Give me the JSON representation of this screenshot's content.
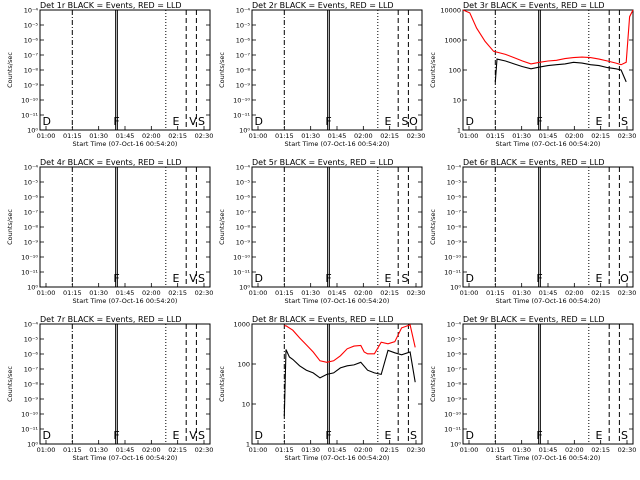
{
  "colors": {
    "events": "#000000",
    "lld": "#ff0000",
    "axes": "#000000"
  },
  "panels": [
    {
      "title": "Det 1r BLACK = Events, RED = LLD",
      "ylabel": "Counts/sec",
      "xlabel": "Start Time (07-Oct-16 00:54:20)",
      "scale": "small",
      "xtick_labels": [
        "01:00",
        "01:15",
        "01:30",
        "01:45",
        "02:00",
        "02:15",
        "02:30"
      ],
      "ytick_labels": [
        "10⁰",
        "10⁻¹¹",
        "10⁻¹⁰",
        "10⁻⁹",
        "10⁻⁸",
        "10⁻⁷",
        "10⁻⁶",
        "10⁻⁵",
        "10⁻⁴"
      ],
      "markers": [
        {
          "text": "D",
          "x": 0.04
        },
        {
          "text": "F",
          "x": 0.45
        },
        {
          "text": "E",
          "x": 0.8
        },
        {
          "text": "V",
          "x": 0.9
        },
        {
          "text": "S",
          "x": 0.95
        }
      ],
      "series": []
    },
    {
      "title": "Det 2r BLACK = Events, RED = LLD",
      "ylabel": "Counts/sec",
      "xlabel": "Start Time (07-Oct-16 00:54:20)",
      "scale": "small",
      "xtick_labels": [
        "01:00",
        "01:15",
        "01:30",
        "01:45",
        "02:00",
        "02:15",
        "02:30"
      ],
      "ytick_labels": [
        "10⁰",
        "10⁻¹¹",
        "10⁻¹⁰",
        "10⁻⁹",
        "10⁻⁸",
        "10⁻⁷",
        "10⁻⁶",
        "10⁻⁵",
        "10⁻⁴"
      ],
      "markers": [
        {
          "text": "D",
          "x": 0.04
        },
        {
          "text": "F",
          "x": 0.45
        },
        {
          "text": "E",
          "x": 0.8
        },
        {
          "text": "S",
          "x": 0.9
        },
        {
          "text": "O",
          "x": 0.95
        }
      ],
      "series": []
    },
    {
      "title": "Det 3r BLACK = Events, RED = LLD",
      "ylabel": "Counts/sec",
      "xlabel": "Start Time (07-Oct-16 00:54:20)",
      "scale": "large",
      "xtick_labels": [
        "01:00",
        "01:15",
        "01:30",
        "01:45",
        "02:00",
        "02:15",
        "02:30"
      ],
      "ytick_labels": [
        "1",
        "10",
        "100",
        "1000",
        "10000"
      ],
      "markers": [
        {
          "text": "D",
          "x": 0.04
        },
        {
          "text": "F",
          "x": 0.45
        },
        {
          "text": "E",
          "x": 0.8
        },
        {
          "text": "S",
          "x": 0.95
        }
      ],
      "series": [
        {
          "color": "#ff0000",
          "x": [
            0,
            0.04,
            0.08,
            0.13,
            0.18,
            0.25,
            0.3,
            0.35,
            0.4,
            0.45,
            0.5,
            0.55,
            0.6,
            0.65,
            0.7,
            0.75,
            0.8,
            0.85,
            0.9,
            0.93,
            0.96,
            0.98,
            1.0
          ],
          "y": [
            15000,
            8000,
            2500,
            900,
            420,
            330,
            260,
            200,
            160,
            180,
            200,
            210,
            240,
            260,
            270,
            260,
            230,
            200,
            170,
            150,
            180,
            6000,
            12000
          ]
        },
        {
          "color": "#000000",
          "x": [
            0.19,
            0.2,
            0.25,
            0.3,
            0.35,
            0.4,
            0.45,
            0.5,
            0.55,
            0.6,
            0.65,
            0.7,
            0.75,
            0.8,
            0.85,
            0.9,
            0.93,
            0.96
          ],
          "y": [
            40,
            230,
            200,
            160,
            130,
            110,
            125,
            140,
            150,
            160,
            180,
            170,
            150,
            140,
            120,
            110,
            100,
            40
          ]
        }
      ]
    },
    {
      "title": "Det 4r BLACK = Events, RED = LLD",
      "ylabel": "Counts/sec",
      "xlabel": "Start Time (07-Oct-16 00:54:20)",
      "scale": "small",
      "xtick_labels": [
        "01:00",
        "01:15",
        "01:30",
        "01:45",
        "02:00",
        "02:15",
        "02:30"
      ],
      "ytick_labels": [
        "10⁰",
        "10⁻¹¹",
        "10⁻¹⁰",
        "10⁻⁹",
        "10⁻⁸",
        "10⁻⁷",
        "10⁻⁶",
        "10⁻⁵",
        "10⁻⁴"
      ],
      "markers": [
        {
          "text": "F",
          "x": 0.45
        },
        {
          "text": "E",
          "x": 0.8
        },
        {
          "text": "V",
          "x": 0.9
        },
        {
          "text": "S",
          "x": 0.95
        }
      ],
      "series": []
    },
    {
      "title": "Det 5r BLACK = Events, RED = LLD",
      "ylabel": "Counts/sec",
      "xlabel": "Start Time (07-Oct-16 00:54:20)",
      "scale": "small",
      "xtick_labels": [
        "01:00",
        "01:15",
        "01:30",
        "01:45",
        "02:00",
        "02:15",
        "02:30"
      ],
      "ytick_labels": [
        "10⁰",
        "10⁻¹¹",
        "10⁻¹⁰",
        "10⁻⁹",
        "10⁻⁸",
        "10⁻⁷",
        "10⁻⁶",
        "10⁻⁵",
        "10⁻⁴"
      ],
      "markers": [
        {
          "text": "D",
          "x": 0.04
        },
        {
          "text": "F",
          "x": 0.45
        },
        {
          "text": "E",
          "x": 0.8
        },
        {
          "text": "S",
          "x": 0.9
        }
      ],
      "series": []
    },
    {
      "title": "Det 6r BLACK = Events, RED = LLD",
      "ylabel": "Counts/sec",
      "xlabel": "Start Time (07-Oct-16 00:54:20)",
      "scale": "small",
      "xtick_labels": [
        "01:00",
        "01:15",
        "01:30",
        "01:45",
        "02:00",
        "02:15",
        "02:30"
      ],
      "ytick_labels": [
        "10⁰",
        "10⁻¹¹",
        "10⁻¹⁰",
        "10⁻⁹",
        "10⁻⁸",
        "10⁻⁷",
        "10⁻⁶",
        "10⁻⁵",
        "10⁻⁴"
      ],
      "markers": [
        {
          "text": "D",
          "x": 0.04
        },
        {
          "text": "F",
          "x": 0.45
        },
        {
          "text": "E",
          "x": 0.8
        },
        {
          "text": "O",
          "x": 0.95
        }
      ],
      "series": []
    },
    {
      "title": "Det 7r BLACK = Events, RED = LLD",
      "ylabel": "Counts/sec",
      "xlabel": "Start Time (07-Oct-16 00:54:20)",
      "scale": "small",
      "xtick_labels": [
        "01:00",
        "01:15",
        "01:30",
        "01:45",
        "02:00",
        "02:15",
        "02:30"
      ],
      "ytick_labels": [
        "10⁰",
        "10⁻¹¹",
        "10⁻¹⁰",
        "10⁻⁹",
        "10⁻⁸",
        "10⁻⁷",
        "10⁻⁶",
        "10⁻⁵",
        "10⁻⁴"
      ],
      "markers": [
        {
          "text": "D",
          "x": 0.04
        },
        {
          "text": "F",
          "x": 0.45
        },
        {
          "text": "E",
          "x": 0.8
        },
        {
          "text": "V",
          "x": 0.9
        },
        {
          "text": "S",
          "x": 0.95
        }
      ],
      "series": []
    },
    {
      "title": "Det 8r BLACK = Events, RED = LLD",
      "ylabel": "Counts/sec",
      "xlabel": "Start Time (07-Oct-16 00:54:20)",
      "scale": "mid",
      "xtick_labels": [
        "01:00",
        "01:15",
        "01:30",
        "01:45",
        "02:00",
        "02:15",
        "02:30"
      ],
      "ytick_labels": [
        "1",
        "10",
        "100",
        "1000"
      ],
      "markers": [
        {
          "text": "D",
          "x": 0.04
        },
        {
          "text": "F",
          "x": 0.45
        },
        {
          "text": "E",
          "x": 0.8
        },
        {
          "text": "S",
          "x": 0.95
        }
      ],
      "series": [
        {
          "color": "#ff0000",
          "x": [
            0.19,
            0.2,
            0.24,
            0.28,
            0.32,
            0.36,
            0.4,
            0.44,
            0.48,
            0.52,
            0.56,
            0.6,
            0.64,
            0.66,
            0.68,
            0.72,
            0.76,
            0.8,
            0.84,
            0.88,
            0.93,
            0.96
          ],
          "y": [
            900,
            900,
            700,
            450,
            300,
            200,
            120,
            110,
            120,
            160,
            240,
            280,
            290,
            200,
            180,
            180,
            350,
            320,
            360,
            800,
            950,
            260
          ]
        },
        {
          "color": "#000000",
          "x": [
            0.19,
            0.2,
            0.22,
            0.24,
            0.28,
            0.32,
            0.36,
            0.4,
            0.44,
            0.48,
            0.52,
            0.56,
            0.6,
            0.64,
            0.68,
            0.72,
            0.76,
            0.8,
            0.84,
            0.88,
            0.93,
            0.96
          ],
          "y": [
            5,
            230,
            150,
            130,
            90,
            70,
            60,
            45,
            55,
            60,
            80,
            90,
            95,
            110,
            70,
            60,
            55,
            220,
            190,
            170,
            200,
            35
          ]
        }
      ]
    },
    {
      "title": "Det 9r BLACK = Events, RED = LLD",
      "ylabel": "Counts/sec",
      "xlabel": "Start Time (07-Oct-16 00:54:20)",
      "scale": "small",
      "xtick_labels": [
        "01:00",
        "01:15",
        "01:30",
        "01:45",
        "02:00",
        "02:15",
        "02:30"
      ],
      "ytick_labels": [
        "10⁰",
        "10⁻¹¹",
        "10⁻¹⁰",
        "10⁻⁹",
        "10⁻⁸",
        "10⁻⁷",
        "10⁻⁶",
        "10⁻⁵",
        "10⁻⁴"
      ],
      "markers": [
        {
          "text": "D",
          "x": 0.04
        },
        {
          "text": "F",
          "x": 0.45
        },
        {
          "text": "E",
          "x": 0.8
        },
        {
          "text": "S",
          "x": 0.95
        }
      ],
      "series": []
    }
  ],
  "chart_data": [
    {
      "type": "line",
      "title": "Det 1r BLACK = Events, RED = LLD",
      "xlabel": "Start Time (07-Oct-16 00:54:20)",
      "ylabel": "Counts/sec",
      "series": []
    },
    {
      "type": "line",
      "title": "Det 2r BLACK = Events, RED = LLD",
      "xlabel": "Start Time (07-Oct-16 00:54:20)",
      "ylabel": "Counts/sec",
      "series": []
    },
    {
      "type": "line",
      "title": "Det 3r BLACK = Events, RED = LLD",
      "xlabel": "Start Time (07-Oct-16 00:54:20)",
      "ylabel": "Counts/sec",
      "yscale": "log",
      "ylim": [
        1,
        10000
      ],
      "series": [
        {
          "name": "LLD",
          "color": "red"
        },
        {
          "name": "Events",
          "color": "black"
        }
      ]
    },
    {
      "type": "line",
      "title": "Det 4r BLACK = Events, RED = LLD",
      "xlabel": "Start Time (07-Oct-16 00:54:20)",
      "ylabel": "Counts/sec",
      "series": []
    },
    {
      "type": "line",
      "title": "Det 5r BLACK = Events, RED = LLD",
      "xlabel": "Start Time (07-Oct-16 00:54:20)",
      "ylabel": "Counts/sec",
      "series": []
    },
    {
      "type": "line",
      "title": "Det 6r BLACK = Events, RED = LLD",
      "xlabel": "Start Time (07-Oct-16 00:54:20)",
      "ylabel": "Counts/sec",
      "series": []
    },
    {
      "type": "line",
      "title": "Det 7r BLACK = Events, RED = LLD",
      "xlabel": "Start Time (07-Oct-16 00:54:20)",
      "ylabel": "Counts/sec",
      "series": []
    },
    {
      "type": "line",
      "title": "Det 8r BLACK = Events, RED = LLD",
      "xlabel": "Start Time (07-Oct-16 00:54:20)",
      "ylabel": "Counts/sec",
      "yscale": "log",
      "ylim": [
        1,
        1000
      ],
      "series": [
        {
          "name": "LLD",
          "color": "red"
        },
        {
          "name": "Events",
          "color": "black"
        }
      ]
    },
    {
      "type": "line",
      "title": "Det 9r BLACK = Events, RED = LLD",
      "xlabel": "Start Time (07-Oct-16 00:54:20)",
      "ylabel": "Counts/sec",
      "series": []
    }
  ]
}
